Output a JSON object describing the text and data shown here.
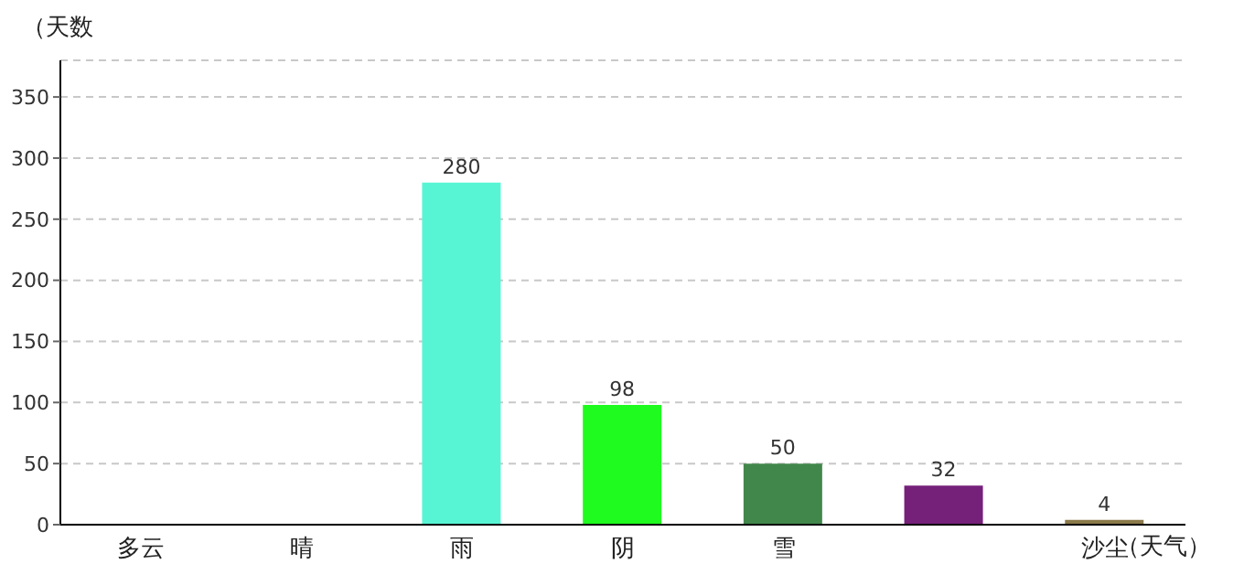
{
  "chart_data": {
    "type": "bar",
    "xlabel": "（天气）",
    "ylabel": "（天数",
    "categories": [
      "多云",
      "晴",
      "雨",
      "阴",
      "雪",
      null,
      "沙尘"
    ],
    "values": [
      null,
      null,
      280,
      98,
      50,
      32,
      4
    ],
    "colors": [
      "#aae3fd",
      "#6a58ef",
      "#58f5d4",
      "#1ffb1f",
      "#41874b",
      "#75217a",
      "#8b7a4a"
    ],
    "ylim": [
      0,
      380
    ],
    "yticks": [
      0,
      50,
      100,
      150,
      200,
      250,
      300,
      350
    ],
    "grid": "y",
    "data_labels": true
  }
}
